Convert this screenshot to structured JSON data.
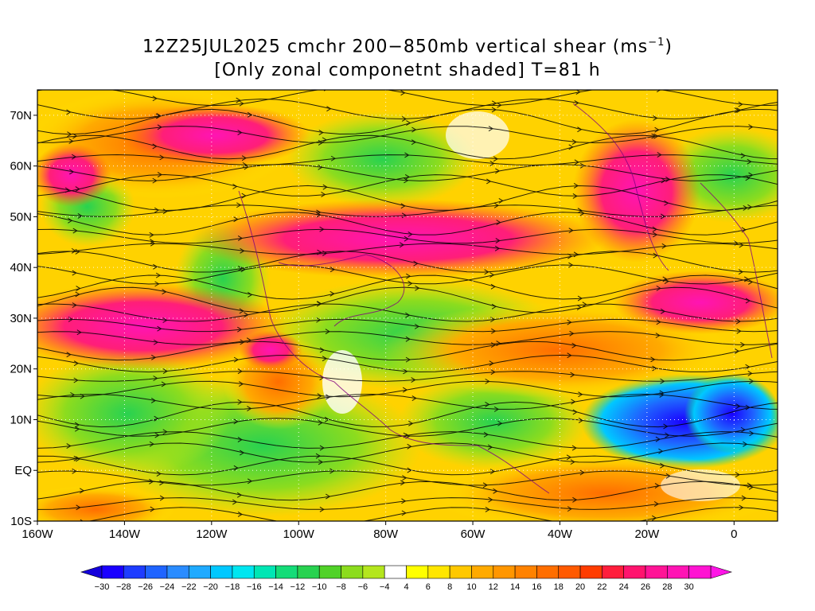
{
  "title": {
    "line1": "12Z25JUL2025 cmchr 200−850mb vertical shear (ms",
    "line1_sup": "−1",
    "line1_end": ")",
    "line2": "[Only zonal componetnt shaded] T=81 h"
  },
  "lat_labels": [
    "70N",
    "60N",
    "50N",
    "40N",
    "30N",
    "20N",
    "10N",
    "EQ",
    "10S"
  ],
  "lat_values": [
    70,
    60,
    50,
    40,
    30,
    20,
    10,
    0,
    -10
  ],
  "lon_labels": [
    "160W",
    "140W",
    "120W",
    "100W",
    "80W",
    "60W",
    "40W",
    "20W",
    "0"
  ],
  "lon_values": [
    -160,
    -140,
    -120,
    -100,
    -80,
    -60,
    -40,
    -20,
    0
  ],
  "map_extent": {
    "lon": [
      -160,
      10
    ],
    "lat": [
      -10,
      75
    ]
  },
  "colorbar": {
    "labels": [
      "−30",
      "−28",
      "−26",
      "−24",
      "−22",
      "−20",
      "−18",
      "−16",
      "−14",
      "−12",
      "−10",
      "−8",
      "−6",
      "−4",
      "4",
      "6",
      "8",
      "10",
      "12",
      "14",
      "16",
      "18",
      "20",
      "22",
      "24",
      "26",
      "28",
      "30"
    ],
    "colors": [
      "#1a00ff",
      "#1e3cff",
      "#1f64ff",
      "#2a8cff",
      "#1faaff",
      "#00c8ff",
      "#00e6f0",
      "#00e6b4",
      "#14dc78",
      "#28d250",
      "#50d228",
      "#8cdc1e",
      "#b4e61e",
      "#ffffff",
      "#ffff00",
      "#ffe600",
      "#ffc800",
      "#ffaa00",
      "#ff9600",
      "#ff8200",
      "#ff6e00",
      "#ff5a00",
      "#ff3c00",
      "#ff1e3c",
      "#ff146e",
      "#ff1496",
      "#ff14b4",
      "#ff14d2"
    ]
  }
}
